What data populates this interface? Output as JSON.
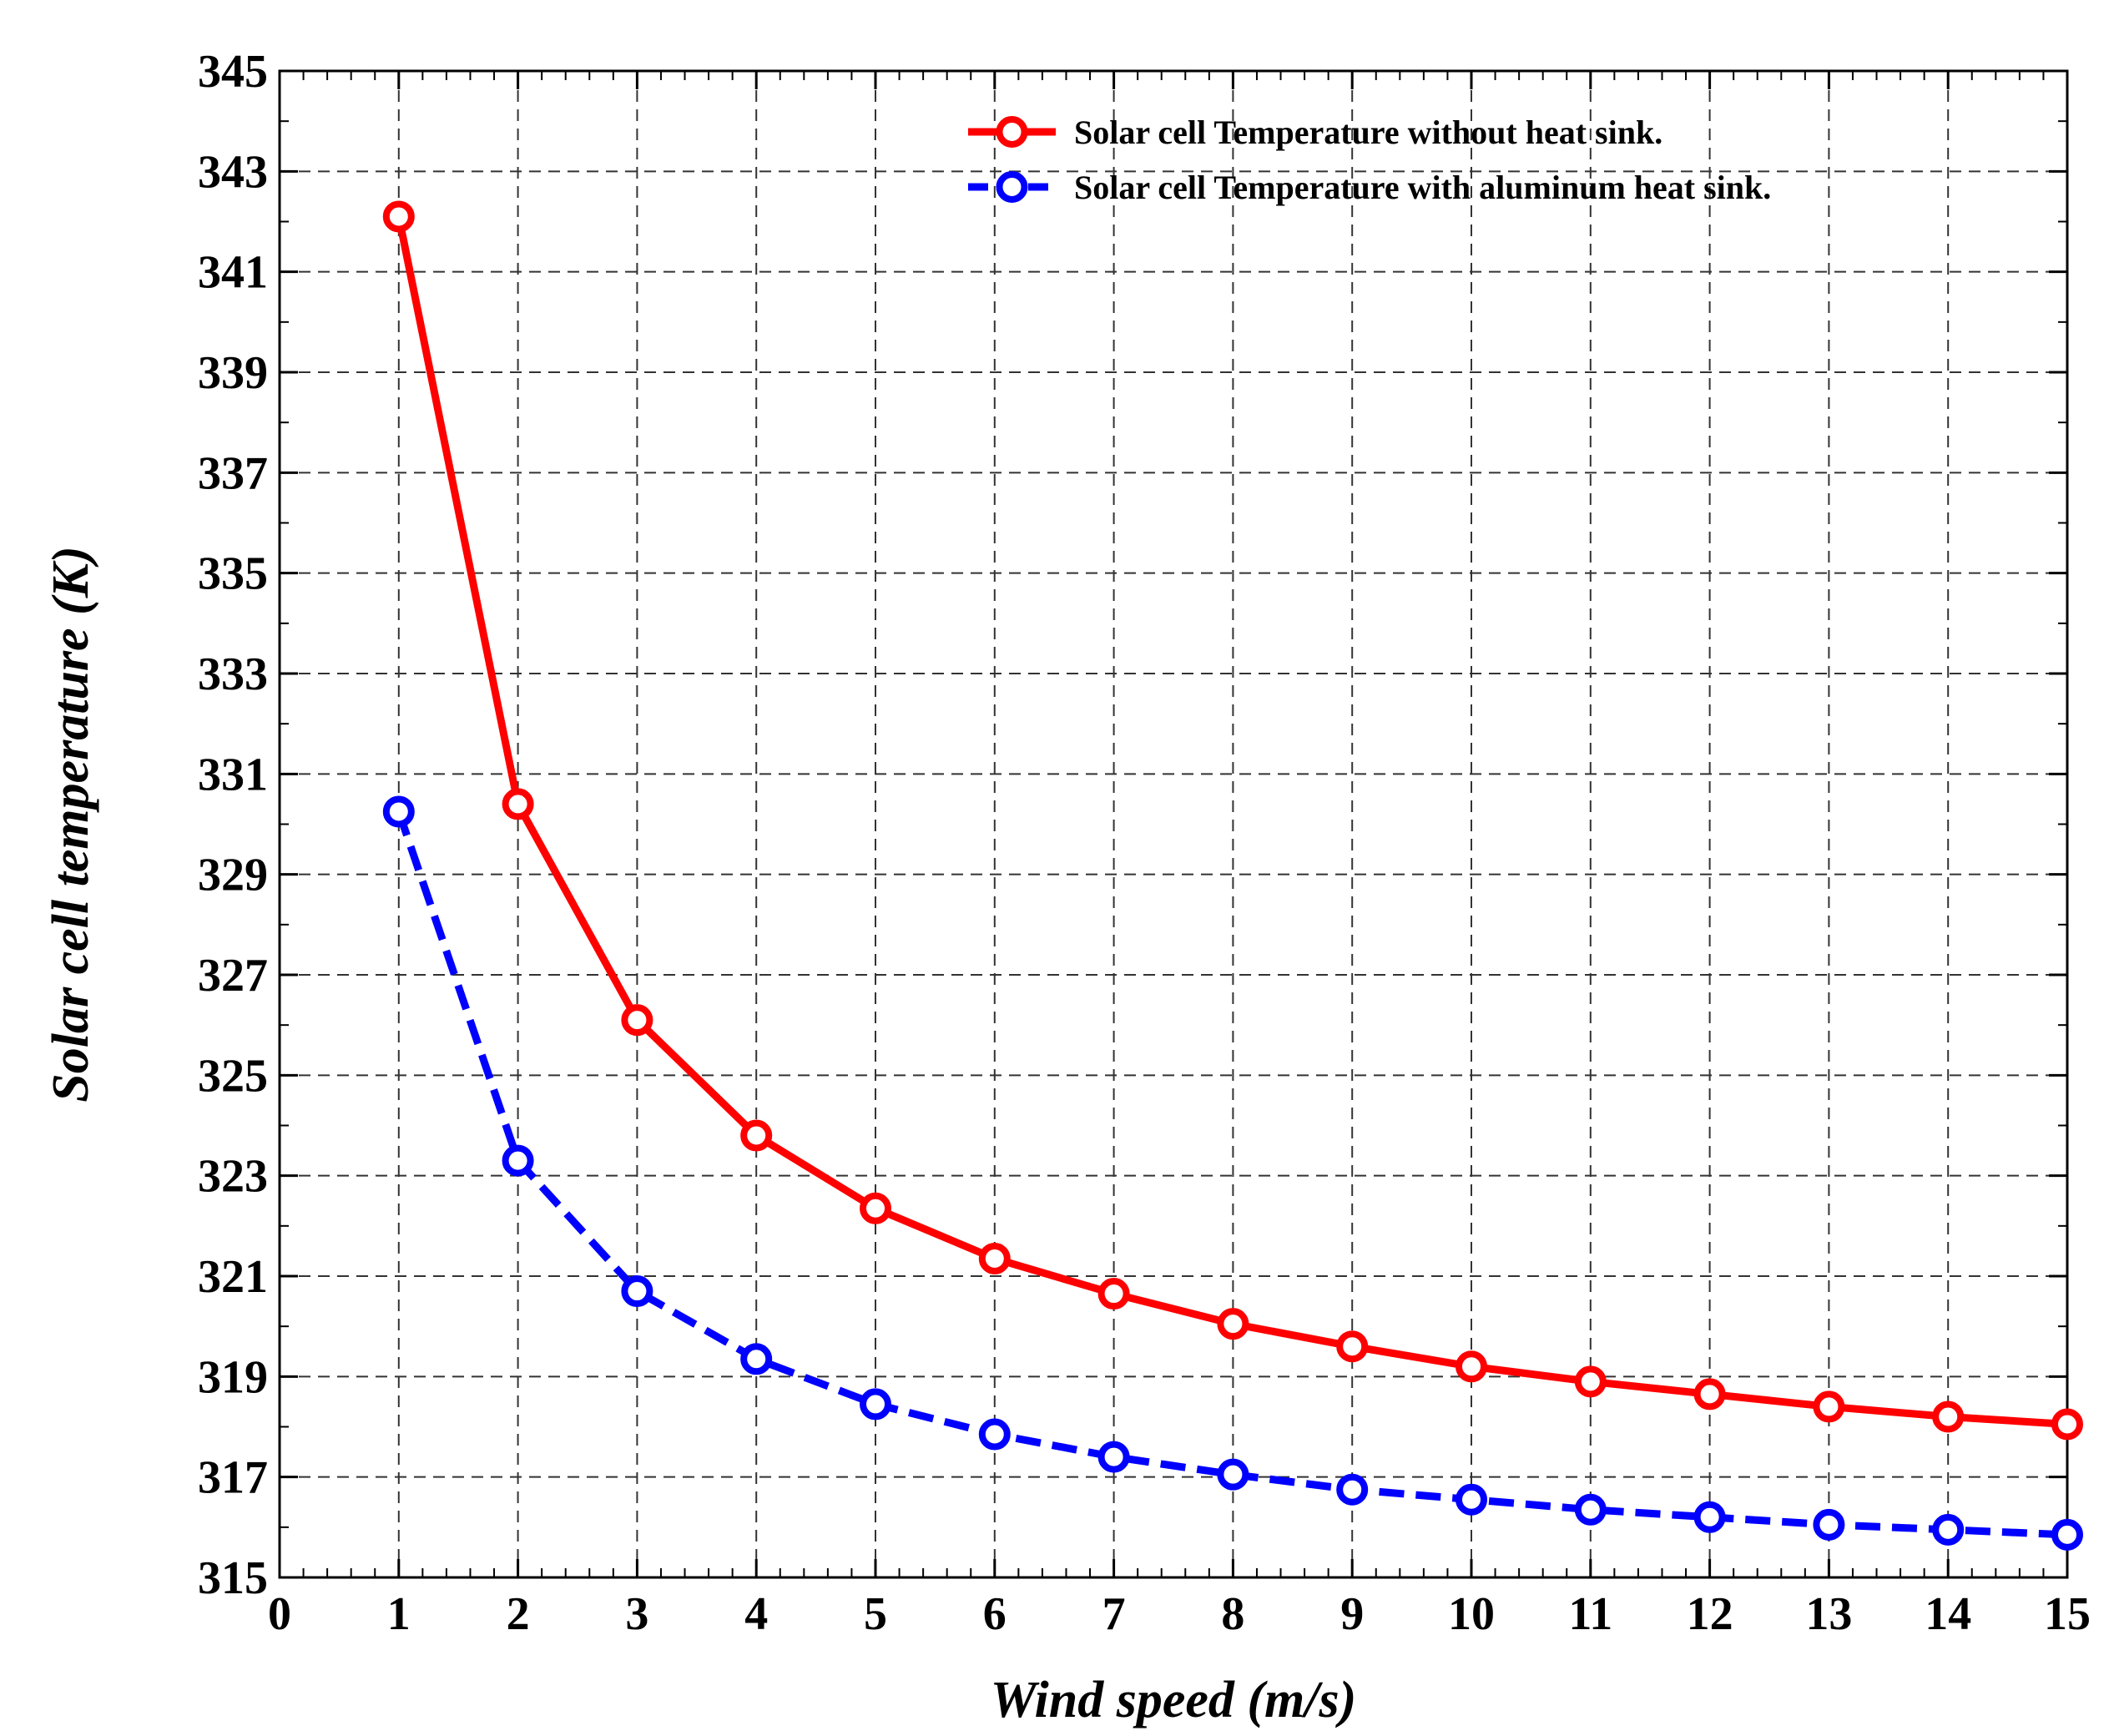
{
  "chart_data": {
    "type": "line",
    "title": "",
    "xlabel": "Wind speed (m/s)",
    "ylabel": "Solar cell temperature (K)",
    "xlim": [
      0,
      15
    ],
    "ylim": [
      315,
      345
    ],
    "xticks": [
      0,
      1,
      2,
      3,
      4,
      5,
      6,
      7,
      8,
      9,
      10,
      11,
      12,
      13,
      14,
      15
    ],
    "yticks": [
      315,
      317,
      319,
      321,
      323,
      325,
      327,
      329,
      331,
      333,
      335,
      337,
      339,
      341,
      343,
      345
    ],
    "grid": true,
    "legend_position": "top-right",
    "x": [
      1,
      2,
      3,
      4,
      5,
      6,
      7,
      8,
      9,
      10,
      11,
      12,
      13,
      14,
      15
    ],
    "series": [
      {
        "name": "Solar cell Temperature without heat sink.",
        "color": "#ff0000",
        "style": "solid",
        "marker": "circle",
        "values": [
          342.1,
          330.4,
          326.1,
          323.8,
          322.35,
          321.35,
          320.65,
          320.05,
          319.6,
          319.2,
          318.9,
          318.65,
          318.4,
          318.2,
          318.05
        ]
      },
      {
        "name": "Solar cell Temperature with aluminum heat sink.",
        "color": "#0000ff",
        "style": "dashed",
        "marker": "circle",
        "values": [
          330.25,
          323.3,
          320.7,
          319.35,
          318.45,
          317.85,
          317.4,
          317.05,
          316.75,
          316.55,
          316.35,
          316.2,
          316.05,
          315.95,
          315.85
        ]
      }
    ]
  }
}
